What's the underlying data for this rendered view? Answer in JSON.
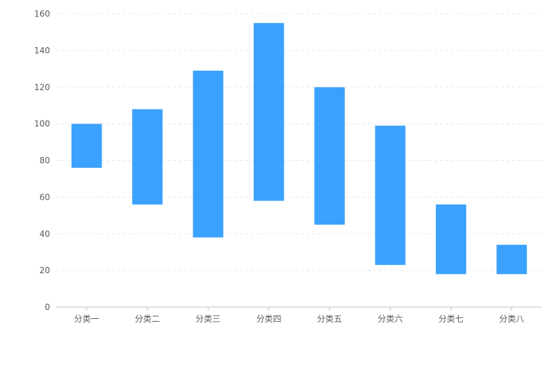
{
  "chart_data": {
    "type": "bar",
    "subtype": "floating-range",
    "categories": [
      "分类一",
      "分类二",
      "分类三",
      "分类四",
      "分类五",
      "分类六",
      "分类七",
      "分类八"
    ],
    "series": [
      {
        "ranges": [
          [
            76,
            100
          ],
          [
            56,
            108
          ],
          [
            38,
            129
          ],
          [
            58,
            155
          ],
          [
            45,
            120
          ],
          [
            23,
            99
          ],
          [
            18,
            56
          ],
          [
            18,
            34
          ]
        ],
        "color": "#3ba1ff"
      }
    ],
    "title": "",
    "xlabel": "",
    "ylabel": "",
    "ylim": [
      0,
      160
    ],
    "yticks": [
      "0",
      "20",
      "40",
      "60",
      "80",
      "100",
      "120",
      "140",
      "160"
    ],
    "grid": true,
    "grid_style": "dashed",
    "legend": "none"
  },
  "colors": {
    "bar": "#3ba1ff",
    "grid": "#e8e8e8",
    "axis": "#bfbfbf",
    "text": "#595959"
  }
}
